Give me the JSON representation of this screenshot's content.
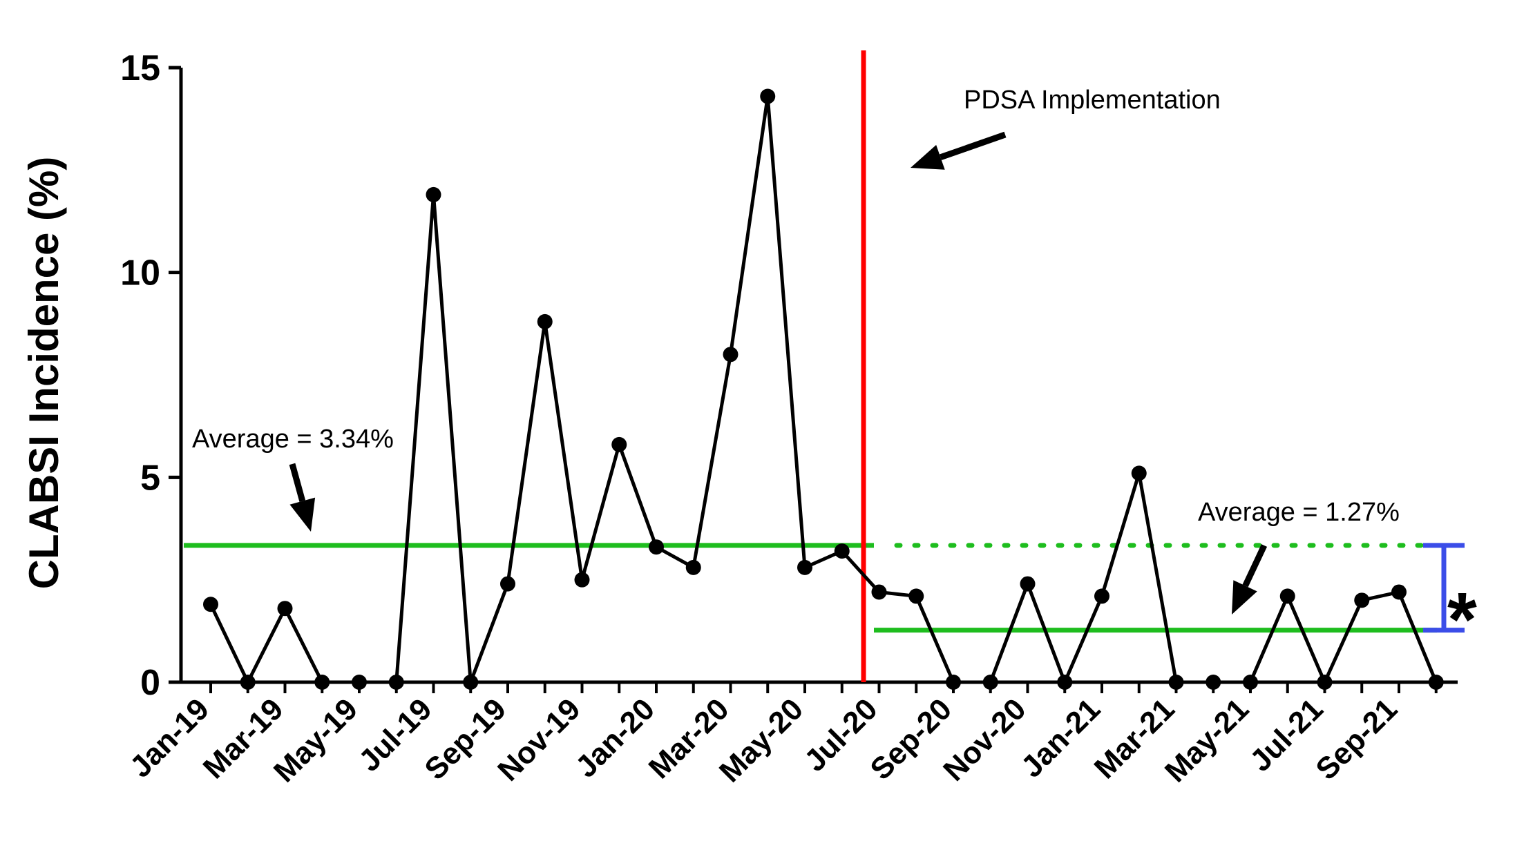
{
  "chart_data": {
    "type": "line",
    "ylabel": "CLABSI Incidence (%)",
    "xlabel": "",
    "ylim": [
      0,
      15
    ],
    "yticks": [
      0,
      5,
      10,
      15
    ],
    "months": [
      "Jan-19",
      "Feb-19",
      "Mar-19",
      "Apr-19",
      "May-19",
      "Jun-19",
      "Jul-19",
      "Aug-19",
      "Sep-19",
      "Oct-19",
      "Nov-19",
      "Dec-19",
      "Jan-20",
      "Feb-20",
      "Mar-20",
      "Apr-20",
      "May-20",
      "Jun-20",
      "Jul-20",
      "Aug-20",
      "Sep-20",
      "Oct-20",
      "Nov-20",
      "Dec-20",
      "Jan-21",
      "Feb-21",
      "Mar-21",
      "Apr-21",
      "May-21",
      "Jun-21",
      "Jul-21",
      "Aug-21",
      "Sep-21",
      "Oct-21"
    ],
    "xtick_labels": [
      "Jan-19",
      "Mar-19",
      "May-19",
      "Jul-19",
      "Sep-19",
      "Nov-19",
      "Jan-20",
      "Mar-20",
      "May-20",
      "Jul-20",
      "Sep-20",
      "Nov-20",
      "Jan-21",
      "Mar-21",
      "May-21",
      "Jul-21",
      "Sep-21"
    ],
    "values": [
      1.9,
      0,
      1.8,
      0,
      0,
      0,
      11.9,
      0,
      2.4,
      8.8,
      2.5,
      5.8,
      3.3,
      2.8,
      8.0,
      14.3,
      2.8,
      3.2,
      2.2,
      2.1,
      0,
      0,
      2.4,
      0,
      2.1,
      5.1,
      0,
      0,
      0,
      2.1,
      0,
      2.0,
      2.2,
      0
    ],
    "annotations": {
      "intervention_label": "PDSA Implementation",
      "avg_before_label": "Average = 3.34%",
      "avg_after_label": "Average = 1.27%",
      "significance_marker": "*"
    },
    "avg_before": 3.34,
    "avg_after": 1.27,
    "colors": {
      "line": "#000000",
      "intervention": "#ff0000",
      "average": "#1ebd1e",
      "bracket": "#3b4de8"
    }
  }
}
